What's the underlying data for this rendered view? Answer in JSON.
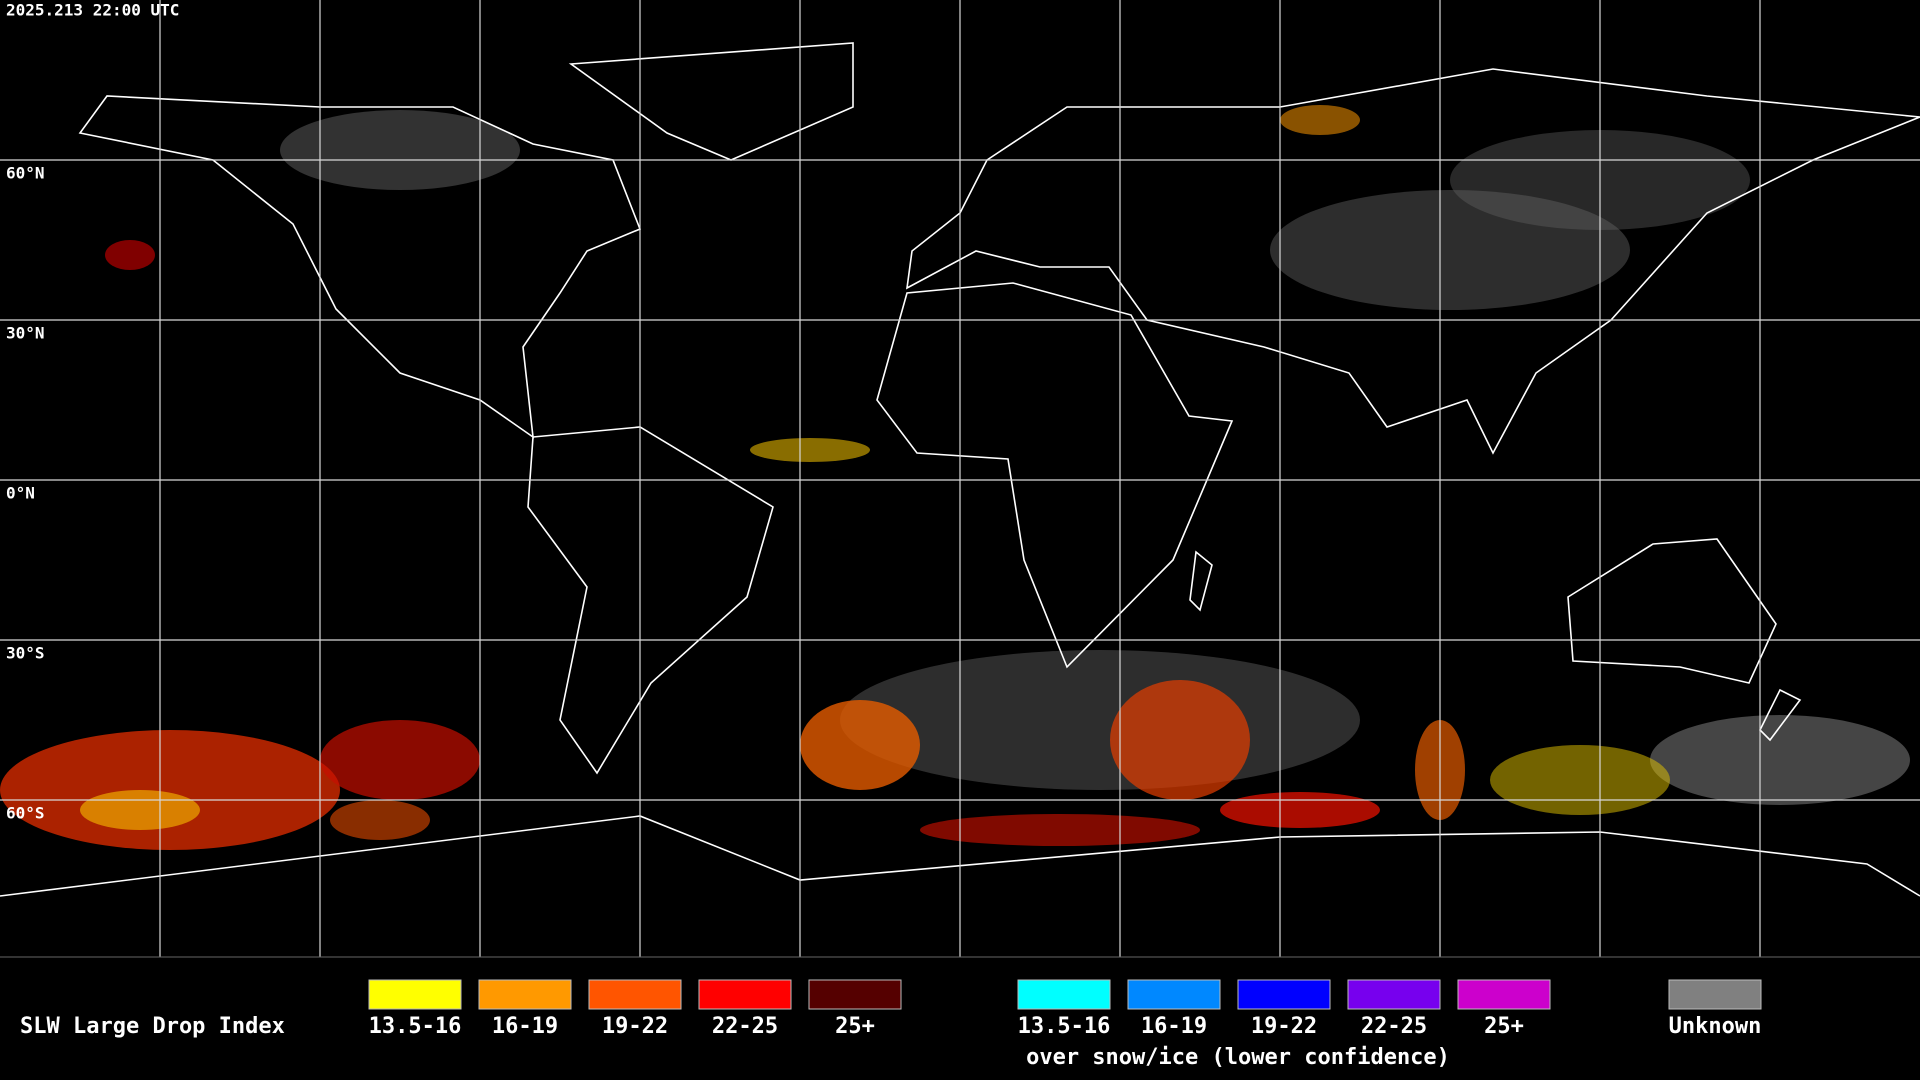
{
  "header": {
    "timestamp": "2025.213 22:00 UTC"
  },
  "lat_labels": [
    "60°N",
    "30°N",
    "0°N",
    "30°S",
    "60°S"
  ],
  "legend": {
    "title": "SLW Large Drop Index",
    "items": [
      {
        "label": "13.5-16",
        "color": "#ffff00"
      },
      {
        "label": "16-19",
        "color": "#ff9900"
      },
      {
        "label": "19-22",
        "color": "#ff5500"
      },
      {
        "label": "22-25",
        "color": "#ff0000"
      },
      {
        "label": "25+",
        "color": "#550000"
      }
    ],
    "snow_items": [
      {
        "label": "13.5-16",
        "color": "#00ffff"
      },
      {
        "label": "16-19",
        "color": "#0088ff"
      },
      {
        "label": "19-22",
        "color": "#0000ff"
      },
      {
        "label": "22-25",
        "color": "#7700ee"
      },
      {
        "label": "25+",
        "color": "#cc00cc"
      }
    ],
    "snow_caption": "over snow/ice (lower confidence)",
    "unknown": {
      "label": "Unknown",
      "color": "#808080"
    }
  }
}
